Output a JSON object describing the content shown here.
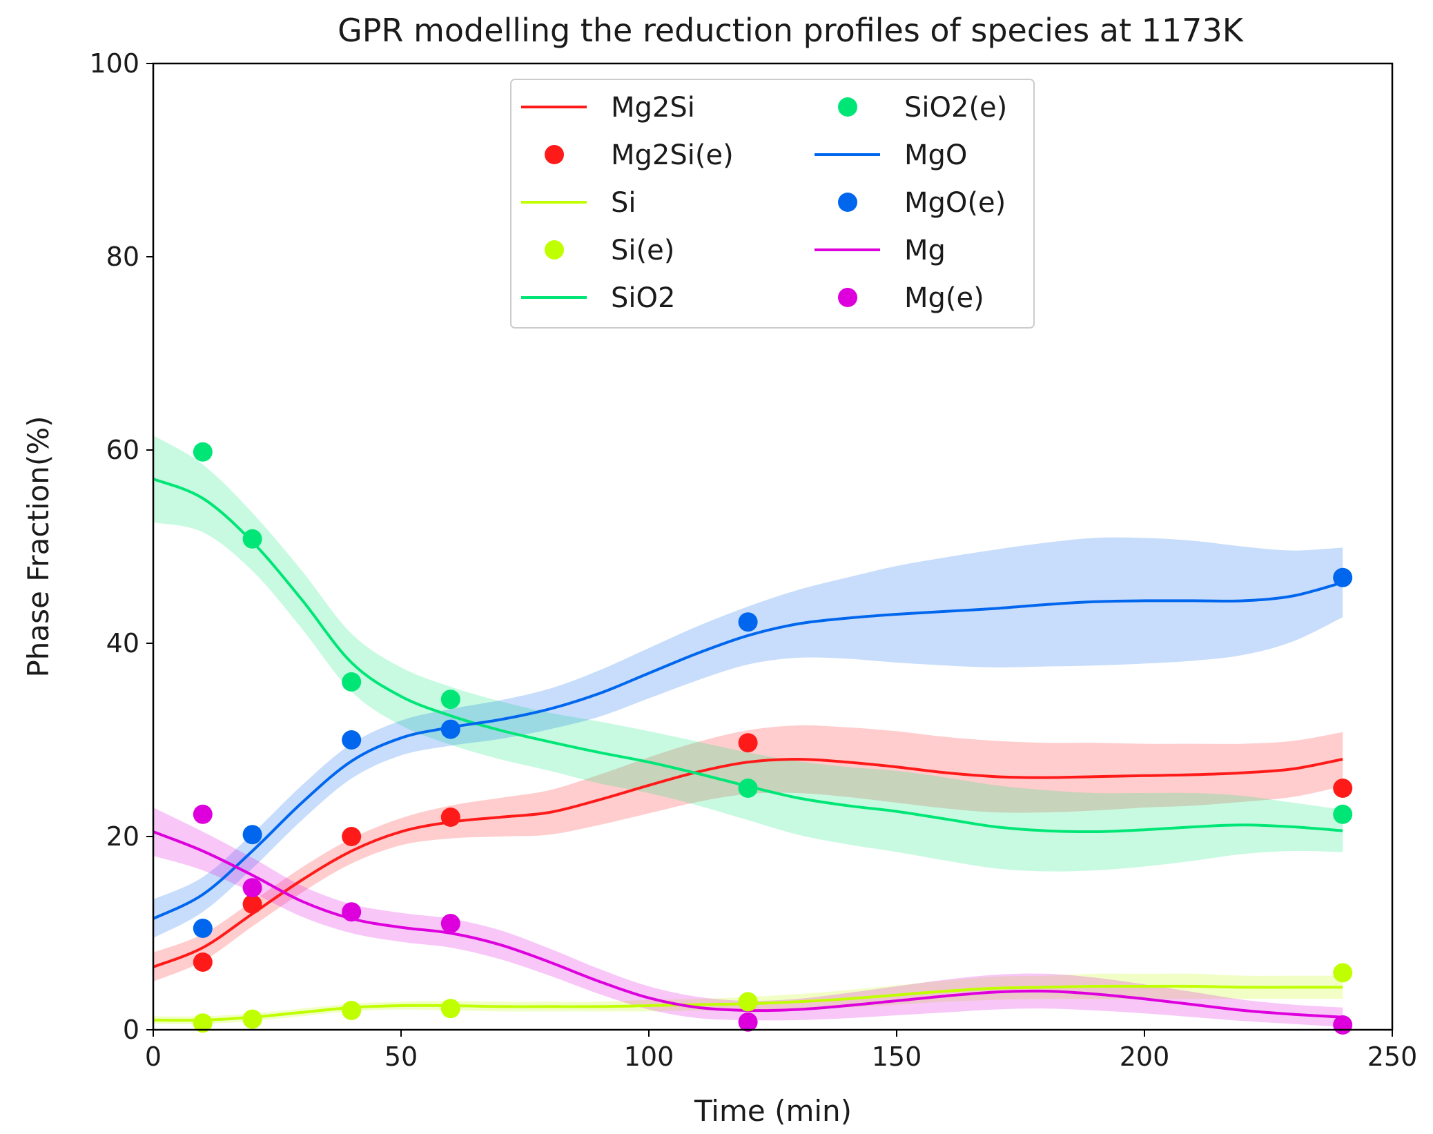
{
  "chart_data": {
    "type": "line",
    "title": "GPR modelling the reduction profiles of species at 1173K",
    "xlabel": "Time (min)",
    "ylabel": "Phase Fraction(%)",
    "xlim": [
      0,
      250
    ],
    "ylim": [
      0,
      100
    ],
    "xticks": [
      0,
      50,
      100,
      150,
      200,
      250
    ],
    "yticks": [
      0,
      20,
      40,
      60,
      80,
      100
    ],
    "grid": false,
    "legend_position": "top-center",
    "legend_entries": [
      "Mg2Si",
      "Mg2Si(e)",
      "Si",
      "Si(e)",
      "SiO2",
      "SiO2(e)",
      "MgO",
      "MgO(e)",
      "Mg",
      "Mg(e)"
    ],
    "series": [
      {
        "name": "Mg2Si",
        "points_name": "Mg2Si(e)",
        "color": "#ff1a1a",
        "x": [
          0,
          10,
          20,
          30,
          40,
          50,
          60,
          70,
          80,
          90,
          100,
          110,
          120,
          130,
          140,
          150,
          160,
          170,
          180,
          190,
          200,
          210,
          220,
          230,
          240
        ],
        "y": [
          6.5,
          8.5,
          12.0,
          15.5,
          18.5,
          20.5,
          21.5,
          22.0,
          22.5,
          23.8,
          25.3,
          26.7,
          27.7,
          28.0,
          27.7,
          27.2,
          26.6,
          26.2,
          26.1,
          26.2,
          26.3,
          26.4,
          26.6,
          27.0,
          28.0
        ],
        "band": [
          1.5,
          1.4,
          1.3,
          1.3,
          1.3,
          1.4,
          1.7,
          2.0,
          2.3,
          2.6,
          2.9,
          3.1,
          3.3,
          3.5,
          3.6,
          3.7,
          3.7,
          3.7,
          3.6,
          3.5,
          3.3,
          3.2,
          3.0,
          2.9,
          2.8
        ],
        "points_x": [
          10,
          20,
          40,
          60,
          120,
          240
        ],
        "points_y": [
          7.0,
          13.0,
          20.0,
          22.0,
          29.7,
          25.0
        ]
      },
      {
        "name": "Si",
        "points_name": "Si(e)",
        "color": "#c0ff00",
        "x": [
          0,
          10,
          20,
          30,
          40,
          50,
          60,
          70,
          80,
          90,
          100,
          110,
          120,
          130,
          140,
          150,
          160,
          170,
          180,
          190,
          200,
          210,
          220,
          230,
          240
        ],
        "y": [
          1.0,
          1.0,
          1.3,
          1.8,
          2.3,
          2.5,
          2.5,
          2.4,
          2.4,
          2.4,
          2.5,
          2.6,
          2.7,
          2.9,
          3.2,
          3.6,
          4.0,
          4.3,
          4.4,
          4.5,
          4.5,
          4.5,
          4.4,
          4.4,
          4.4
        ],
        "band": [
          0.4,
          0.4,
          0.4,
          0.4,
          0.4,
          0.4,
          0.5,
          0.5,
          0.5,
          0.5,
          0.6,
          0.6,
          0.7,
          0.8,
          0.9,
          1.0,
          1.1,
          1.2,
          1.2,
          1.3,
          1.3,
          1.3,
          1.2,
          1.2,
          1.2
        ],
        "points_x": [
          10,
          20,
          40,
          60,
          120,
          240
        ],
        "points_y": [
          0.7,
          1.1,
          2.0,
          2.2,
          2.9,
          5.9
        ]
      },
      {
        "name": "SiO2",
        "points_name": "SiO2(e)",
        "color": "#00e676",
        "x": [
          0,
          10,
          20,
          30,
          40,
          50,
          60,
          70,
          80,
          90,
          100,
          110,
          120,
          130,
          140,
          150,
          160,
          170,
          180,
          190,
          200,
          210,
          220,
          230,
          240
        ],
        "y": [
          57.0,
          55.0,
          50.5,
          44.5,
          38.0,
          34.5,
          32.5,
          31.0,
          29.8,
          28.7,
          27.7,
          26.5,
          25.2,
          24.0,
          23.2,
          22.6,
          21.8,
          21.0,
          20.6,
          20.5,
          20.7,
          21.0,
          21.2,
          21.0,
          20.6
        ],
        "band": [
          4.5,
          3.5,
          3.0,
          3.0,
          3.0,
          3.0,
          3.0,
          3.0,
          3.0,
          3.2,
          3.2,
          3.3,
          3.5,
          3.8,
          4.0,
          4.2,
          4.3,
          4.3,
          4.2,
          4.0,
          3.8,
          3.5,
          3.0,
          2.5,
          2.2
        ],
        "points_x": [
          10,
          20,
          40,
          60,
          120,
          240
        ],
        "points_y": [
          59.8,
          50.8,
          36.0,
          34.2,
          25.0,
          22.3
        ]
      },
      {
        "name": "MgO",
        "points_name": "MgO(e)",
        "color": "#0066ee",
        "x": [
          0,
          10,
          20,
          30,
          40,
          50,
          60,
          70,
          80,
          90,
          100,
          110,
          120,
          130,
          140,
          150,
          160,
          170,
          180,
          190,
          200,
          210,
          220,
          230,
          240
        ],
        "y": [
          11.5,
          14.0,
          18.5,
          23.5,
          27.8,
          30.2,
          31.3,
          32.1,
          33.2,
          34.8,
          36.9,
          39.0,
          40.8,
          42.0,
          42.6,
          43.0,
          43.3,
          43.6,
          44.0,
          44.3,
          44.4,
          44.4,
          44.4,
          44.9,
          46.3
        ],
        "band": [
          2.0,
          1.8,
          1.8,
          1.8,
          1.8,
          1.8,
          1.9,
          2.0,
          2.1,
          2.4,
          2.6,
          2.8,
          3.0,
          3.5,
          4.2,
          5.0,
          5.6,
          6.1,
          6.4,
          6.6,
          6.5,
          6.2,
          5.6,
          4.7,
          3.6
        ],
        "points_x": [
          10,
          20,
          40,
          60,
          120,
          240
        ],
        "points_y": [
          10.5,
          20.2,
          30.0,
          31.1,
          42.2,
          46.8
        ]
      },
      {
        "name": "Mg",
        "points_name": "Mg(e)",
        "color": "#dd00dd",
        "x": [
          0,
          10,
          20,
          30,
          40,
          50,
          60,
          70,
          80,
          90,
          100,
          110,
          120,
          130,
          140,
          150,
          160,
          170,
          180,
          190,
          200,
          210,
          220,
          230,
          240
        ],
        "y": [
          20.5,
          18.5,
          16.0,
          13.3,
          11.5,
          10.6,
          10.0,
          8.8,
          7.0,
          5.0,
          3.3,
          2.3,
          2.0,
          2.1,
          2.5,
          3.0,
          3.5,
          3.9,
          4.0,
          3.7,
          3.2,
          2.6,
          2.0,
          1.6,
          1.3
        ],
        "band": [
          2.5,
          2.0,
          1.8,
          1.6,
          1.5,
          1.5,
          1.5,
          1.5,
          1.4,
          1.3,
          1.2,
          1.1,
          1.0,
          1.1,
          1.3,
          1.5,
          1.7,
          1.8,
          1.8,
          1.7,
          1.5,
          1.3,
          1.1,
          1.0,
          1.0
        ],
        "points_x": [
          10,
          20,
          40,
          60,
          120,
          240
        ],
        "points_y": [
          22.3,
          14.7,
          12.2,
          11.0,
          0.8,
          0.5
        ]
      }
    ]
  }
}
